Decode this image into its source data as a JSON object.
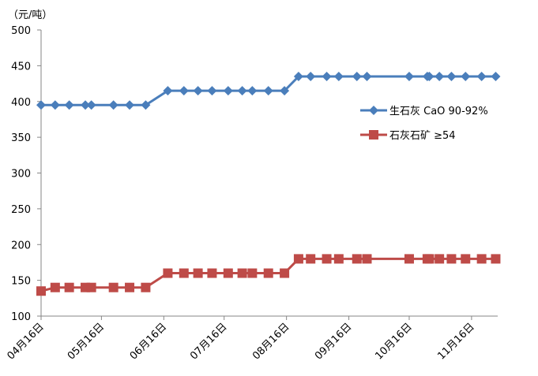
{
  "chart_data": {
    "type": "line",
    "title": "",
    "ylabel": "（元/吨）",
    "xlabel": "",
    "ylim": [
      100,
      500
    ],
    "yticks": [
      100,
      150,
      200,
      250,
      300,
      350,
      400,
      450,
      500
    ],
    "x_unit": "days since 04月16日",
    "xlim": [
      0,
      227
    ],
    "xticks": [
      {
        "day": 0,
        "label": "04月16日"
      },
      {
        "day": 30,
        "label": "05月16日"
      },
      {
        "day": 61,
        "label": "06月16日"
      },
      {
        "day": 91,
        "label": "07月16日"
      },
      {
        "day": 122,
        "label": "08月16日"
      },
      {
        "day": 153,
        "label": "09月16日"
      },
      {
        "day": 183,
        "label": "10月16日"
      },
      {
        "day": 214,
        "label": "11月16日"
      }
    ],
    "x": [
      0,
      7,
      14,
      22,
      25,
      36,
      44,
      52,
      63,
      71,
      78,
      85,
      93,
      100,
      105,
      113,
      121,
      128,
      134,
      142,
      148,
      157,
      162,
      183,
      192,
      193,
      198,
      204,
      211,
      219,
      226
    ],
    "series": [
      {
        "name": "生石灰 CaO 90-92%",
        "color": "#4a7ebb",
        "marker": "diamond",
        "values": [
          395,
          395,
          395,
          395,
          395,
          395,
          395,
          395,
          415,
          415,
          415,
          415,
          415,
          415,
          415,
          415,
          415,
          435,
          435,
          435,
          435,
          435,
          435,
          435,
          435,
          435,
          435,
          435,
          435,
          435,
          435
        ]
      },
      {
        "name": "石灰石矿 ≥54",
        "color": "#be4b48",
        "marker": "square",
        "values": [
          135,
          140,
          140,
          140,
          140,
          140,
          140,
          140,
          160,
          160,
          160,
          160,
          160,
          160,
          160,
          160,
          160,
          180,
          180,
          180,
          180,
          180,
          180,
          180,
          180,
          180,
          180,
          180,
          180,
          180,
          180
        ]
      }
    ],
    "grid": false,
    "legend": "right"
  }
}
